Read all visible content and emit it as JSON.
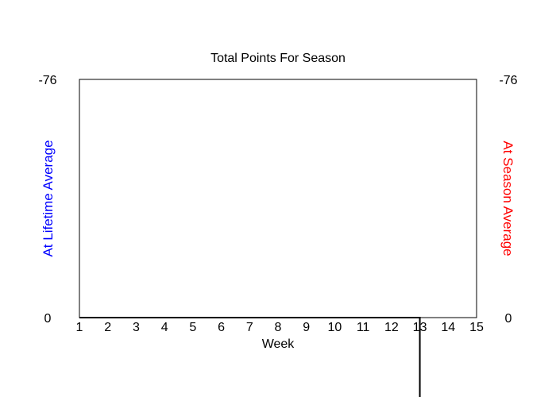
{
  "chart_data": {
    "type": "line",
    "title": "Total Points For Season",
    "xlabel": "Week",
    "ylabel_left": "At Lifetime Average",
    "ylabel_right": "At Season Average",
    "colors": {
      "left_axis_label": "#0000ff",
      "right_axis_label": "#ff0000",
      "line": "#000000"
    },
    "x_ticks": [
      "1",
      "2",
      "3",
      "4",
      "5",
      "6",
      "7",
      "8",
      "9",
      "10",
      "11",
      "12",
      "13",
      "14",
      "15"
    ],
    "xlim": [
      1,
      15
    ],
    "ylim_left": [
      0,
      -76
    ],
    "ylim_right": [
      0,
      -76
    ],
    "y_ticks_left": [
      "-76",
      "0"
    ],
    "y_ticks_right": [
      "-76",
      "0"
    ],
    "y_axis_inverted": true,
    "grid": false,
    "series": [
      {
        "x": [
          1,
          2,
          3,
          4,
          5,
          6,
          7,
          8,
          9,
          10,
          11,
          12,
          13,
          13
        ],
        "y": [
          0,
          0,
          0,
          0,
          0,
          0,
          0,
          0,
          0,
          0,
          0,
          0,
          0,
          30
        ]
      }
    ]
  }
}
